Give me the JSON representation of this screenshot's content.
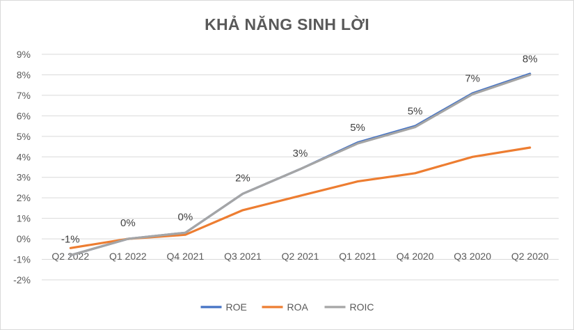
{
  "chart_data": {
    "type": "line",
    "title": "KHẢ NĂNG SINH LỜI",
    "categories": [
      "Q2 2022",
      "Q1 2022",
      "Q4 2021",
      "Q3 2021",
      "Q2 2021",
      "Q1 2021",
      "Q4 2020",
      "Q3 2020",
      "Q2 2020"
    ],
    "y_ticks": [
      "9%",
      "8%",
      "7%",
      "6%",
      "5%",
      "4%",
      "3%",
      "2%",
      "1%",
      "0%",
      "-1%",
      "-2%"
    ],
    "ylim": [
      -2,
      9
    ],
    "grid": true,
    "legend_position": "bottom",
    "series": [
      {
        "name": "ROE",
        "color": "#4472c4",
        "values": [
          -0.8,
          0.0,
          0.3,
          2.2,
          3.4,
          4.7,
          5.5,
          7.1,
          8.05
        ]
      },
      {
        "name": "ROA",
        "color": "#ed7d31",
        "values": [
          -0.45,
          0.0,
          0.2,
          1.4,
          2.1,
          2.8,
          3.2,
          4.0,
          4.45
        ]
      },
      {
        "name": "ROIC",
        "color": "#a5a5a5",
        "values": [
          -0.8,
          0.0,
          0.3,
          2.2,
          3.4,
          4.65,
          5.45,
          7.05,
          8.0
        ]
      }
    ],
    "data_labels": {
      "series": "ROIC",
      "values": [
        "-1%",
        "0%",
        "0%",
        "2%",
        "3%",
        "5%",
        "5%",
        "7%",
        "8%"
      ]
    }
  }
}
